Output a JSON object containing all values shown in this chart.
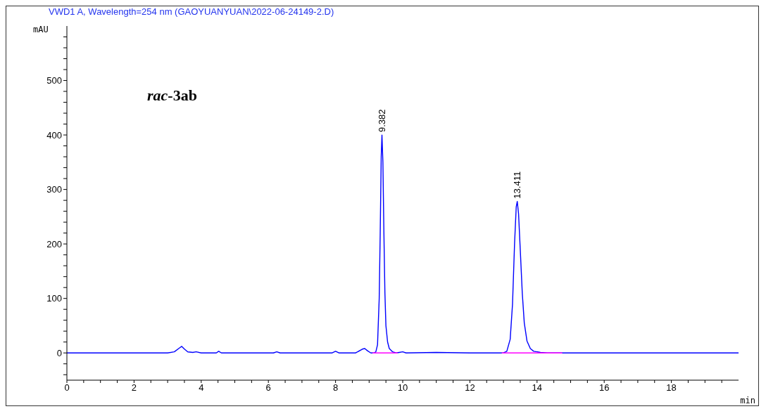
{
  "chart_data": {
    "type": "line",
    "title": "VWD1 A, Wavelength=254 nm (GAOYUANYUAN\\2022-06-24149-2.D)",
    "xlabel": "min",
    "ylabel": "mAU",
    "xlim": [
      0,
      20
    ],
    "ylim": [
      -50,
      600
    ],
    "xticks": [
      0,
      {
        "value": 0.5,
        "label": null
      },
      {
        "value": 1,
        "label": null
      },
      {
        "value": 1.5,
        "label": null
      },
      2,
      {
        "value": 2.5,
        "label": null
      },
      {
        "value": 3,
        "label": null
      },
      {
        "value": 3.5,
        "label": null
      },
      4,
      {
        "value": 4.5,
        "label": null
      },
      {
        "value": 5,
        "label": null
      },
      {
        "value": 5.5,
        "label": null
      },
      6,
      {
        "value": 6.5,
        "label": null
      },
      {
        "value": 7,
        "label": null
      },
      {
        "value": 7.5,
        "label": null
      },
      8,
      {
        "value": 8.5,
        "label": null
      },
      {
        "value": 9,
        "label": null
      },
      {
        "value": 9.5,
        "label": null
      },
      10,
      {
        "value": 10.5,
        "label": null
      },
      {
        "value": 11,
        "label": null
      },
      {
        "value": 11.5,
        "label": null
      },
      12,
      {
        "value": 12.5,
        "label": null
      },
      {
        "value": 13,
        "label": null
      },
      {
        "value": 13.5,
        "label": null
      },
      14,
      {
        "value": 14.5,
        "label": null
      },
      {
        "value": 15,
        "label": null
      },
      {
        "value": 15.5,
        "label": null
      },
      16,
      {
        "value": 16.5,
        "label": null
      },
      {
        "value": 17,
        "label": null
      },
      {
        "value": 17.5,
        "label": null
      },
      18,
      {
        "value": 18.5,
        "label": null
      },
      {
        "value": 19,
        "label": null
      },
      {
        "value": 19.5,
        "label": null
      }
    ],
    "yticks": [
      {
        "value": -40,
        "label": null
      },
      {
        "value": -20,
        "label": null
      },
      0,
      {
        "value": 20,
        "label": null
      },
      {
        "value": 40,
        "label": null
      },
      {
        "value": 60,
        "label": null
      },
      {
        "value": 80,
        "label": null
      },
      100,
      {
        "value": 120,
        "label": null
      },
      {
        "value": 140,
        "label": null
      },
      {
        "value": 160,
        "label": null
      },
      {
        "value": 180,
        "label": null
      },
      200,
      {
        "value": 220,
        "label": null
      },
      {
        "value": 240,
        "label": null
      },
      {
        "value": 260,
        "label": null
      },
      {
        "value": 280,
        "label": null
      },
      300,
      {
        "value": 320,
        "label": null
      },
      {
        "value": 340,
        "label": null
      },
      {
        "value": 360,
        "label": null
      },
      {
        "value": 380,
        "label": null
      },
      400,
      {
        "value": 420,
        "label": null
      },
      {
        "value": 440,
        "label": null
      },
      {
        "value": 460,
        "label": null
      },
      {
        "value": 480,
        "label": null
      },
      500,
      {
        "value": 520,
        "label": null
      },
      {
        "value": 540,
        "label": null
      },
      {
        "value": 560,
        "label": null
      },
      {
        "value": 580,
        "label": null
      }
    ],
    "marker": "none",
    "line_style": "solid",
    "series": [
      {
        "color": "#0000ff",
        "x": [
          0,
          3.0,
          3.2,
          3.35,
          3.42,
          3.5,
          3.6,
          3.75,
          3.85,
          4.0,
          4.45,
          4.52,
          4.6,
          6.15,
          6.25,
          6.35,
          7.9,
          8.0,
          8.1,
          8.6,
          8.8,
          8.87,
          8.95,
          9.05,
          9.15,
          9.2,
          9.25,
          9.3,
          9.33,
          9.36,
          9.382,
          9.41,
          9.44,
          9.47,
          9.5,
          9.55,
          9.6,
          9.7,
          9.8,
          9.9,
          10.0,
          10.1,
          11.0,
          12.0,
          13.0,
          13.1,
          13.2,
          13.27,
          13.33,
          13.38,
          13.411,
          13.45,
          13.5,
          13.56,
          13.62,
          13.7,
          13.8,
          13.9,
          14.1,
          14.3,
          20
        ],
        "values": [
          0,
          0,
          2,
          9,
          12,
          7,
          2,
          1,
          2,
          0,
          0,
          3,
          0,
          0,
          2,
          0,
          0,
          3,
          0,
          0,
          7,
          8,
          4,
          0,
          0,
          2,
          15,
          100,
          220,
          360,
          400,
          350,
          220,
          110,
          50,
          20,
          8,
          2,
          0,
          1,
          2,
          0,
          1,
          0,
          0,
          3,
          25,
          90,
          200,
          268,
          278,
          255,
          190,
          110,
          55,
          22,
          8,
          3,
          1,
          0,
          0
        ]
      },
      {
        "color": "#ff00ff",
        "x": [
          9.1,
          9.85
        ],
        "values": [
          0,
          0
        ]
      },
      {
        "color": "#ff00ff",
        "x": [
          12.95,
          14.75
        ],
        "values": [
          0,
          0
        ]
      }
    ],
    "annotations": [
      "rac-3ab",
      {
        "text": "9.382",
        "x": 9.382,
        "y": 400
      },
      {
        "text": "13.411",
        "x": 13.411,
        "y": 278
      }
    ]
  }
}
